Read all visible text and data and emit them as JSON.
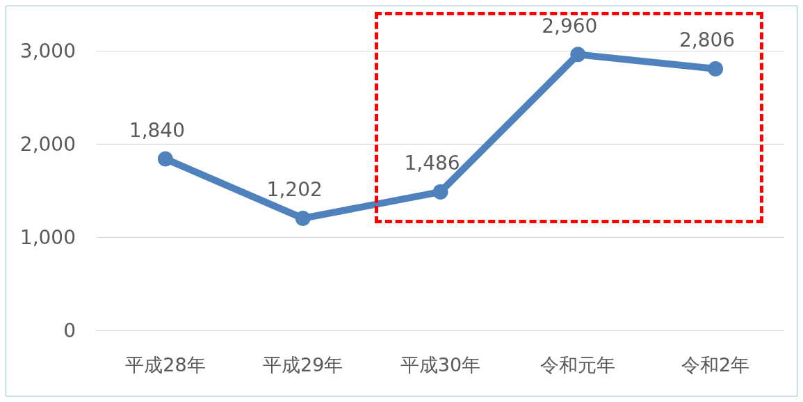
{
  "chart_data": {
    "type": "line",
    "categories": [
      "平成28年",
      "平成29年",
      "平成30年",
      "令和元年",
      "令和2年"
    ],
    "series": [
      {
        "color": "#4f81bd",
        "values": [
          1840,
          1202,
          1486,
          2960,
          2806
        ],
        "value_labels": [
          "1,840",
          "1,202",
          "1,486",
          "2,960",
          "2,806"
        ]
      }
    ],
    "ylim": [
      0,
      3000
    ],
    "yticks": [
      {
        "value": 0,
        "label": "0"
      },
      {
        "value": 1000,
        "label": "1,000"
      },
      {
        "value": 2000,
        "label": "2,000"
      },
      {
        "value": 3000,
        "label": "3,000"
      }
    ],
    "grid": "y",
    "marker": "circle",
    "line_style": "solid"
  }
}
